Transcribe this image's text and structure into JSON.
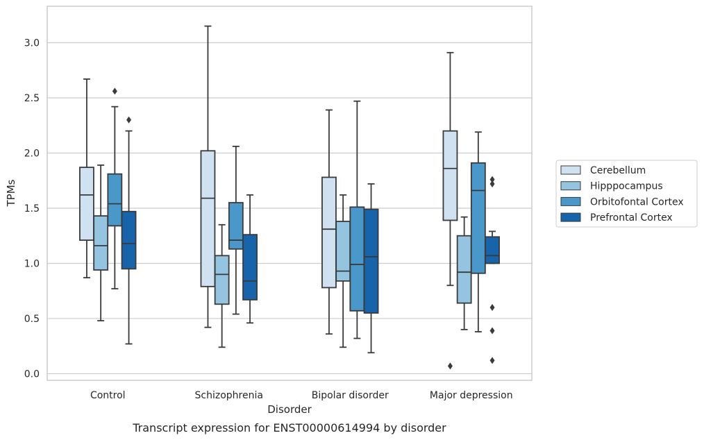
{
  "caption": "Transcript expression for ENST00000614994 by disorder",
  "chart_data": {
    "type": "box",
    "xlabel": "Disorder",
    "ylabel": "TPMs",
    "ylim": [
      -0.06,
      3.33
    ],
    "yticks": [
      0.0,
      0.5,
      1.0,
      1.5,
      2.0,
      2.5,
      3.0
    ],
    "ytick_labels": [
      "0.0",
      "0.5",
      "1.0",
      "1.5",
      "2.0",
      "2.5",
      "3.0"
    ],
    "grid": "horizontal",
    "legend_position": "right",
    "categories": [
      "Control",
      "Schizophrenia",
      "Bipolar disorder",
      "Major depression"
    ],
    "series": [
      {
        "name": "Cerebellum",
        "color": "#d0e1f2",
        "boxes": [
          {
            "whisker_low": 0.87,
            "q1": 1.21,
            "median": 1.62,
            "q3": 1.87,
            "whisker_high": 2.67,
            "outliers": []
          },
          {
            "whisker_low": 0.42,
            "q1": 0.79,
            "median": 1.59,
            "q3": 2.02,
            "whisker_high": 3.15,
            "outliers": []
          },
          {
            "whisker_low": 0.36,
            "q1": 0.78,
            "median": 1.31,
            "q3": 1.78,
            "whisker_high": 2.39,
            "outliers": []
          },
          {
            "whisker_low": 0.8,
            "q1": 1.39,
            "median": 1.86,
            "q3": 2.2,
            "whisker_high": 2.91,
            "outliers": [
              0.07
            ]
          }
        ]
      },
      {
        "name": "Hipppocampus",
        "color": "#94c4df",
        "boxes": [
          {
            "whisker_low": 0.48,
            "q1": 0.94,
            "median": 1.16,
            "q3": 1.43,
            "whisker_high": 1.89,
            "outliers": []
          },
          {
            "whisker_low": 0.24,
            "q1": 0.63,
            "median": 0.9,
            "q3": 1.07,
            "whisker_high": 1.35,
            "outliers": []
          },
          {
            "whisker_low": 0.24,
            "q1": 0.84,
            "median": 0.93,
            "q3": 1.38,
            "whisker_high": 1.62,
            "outliers": []
          },
          {
            "whisker_low": 0.4,
            "q1": 0.64,
            "median": 0.92,
            "q3": 1.25,
            "whisker_high": 1.42,
            "outliers": []
          }
        ]
      },
      {
        "name": "Orbitofontal Cortex",
        "color": "#4a98c9",
        "boxes": [
          {
            "whisker_low": 0.77,
            "q1": 1.34,
            "median": 1.54,
            "q3": 1.81,
            "whisker_high": 2.42,
            "outliers": [
              2.56
            ]
          },
          {
            "whisker_low": 0.54,
            "q1": 1.13,
            "median": 1.21,
            "q3": 1.55,
            "whisker_high": 2.06,
            "outliers": []
          },
          {
            "whisker_low": 0.32,
            "q1": 0.57,
            "median": 0.99,
            "q3": 1.51,
            "whisker_high": 2.47,
            "outliers": []
          },
          {
            "whisker_low": 0.38,
            "q1": 0.91,
            "median": 1.66,
            "q3": 1.91,
            "whisker_high": 2.19,
            "outliers": []
          }
        ]
      },
      {
        "name": "Prefrontal Cortex",
        "color": "#1764ab",
        "boxes": [
          {
            "whisker_low": 0.27,
            "q1": 0.95,
            "median": 1.18,
            "q3": 1.47,
            "whisker_high": 2.2,
            "outliers": [
              2.3
            ]
          },
          {
            "whisker_low": 0.46,
            "q1": 0.67,
            "median": 0.84,
            "q3": 1.26,
            "whisker_high": 1.62,
            "outliers": []
          },
          {
            "whisker_low": 0.19,
            "q1": 0.55,
            "median": 1.06,
            "q3": 1.49,
            "whisker_high": 1.72,
            "outliers": []
          },
          {
            "whisker_low": 1.0,
            "q1": 1.0,
            "median": 1.07,
            "q3": 1.24,
            "whisker_high": 1.29,
            "outliers": [
              1.76,
              1.72,
              0.6,
              0.39,
              0.12
            ]
          }
        ]
      }
    ]
  }
}
